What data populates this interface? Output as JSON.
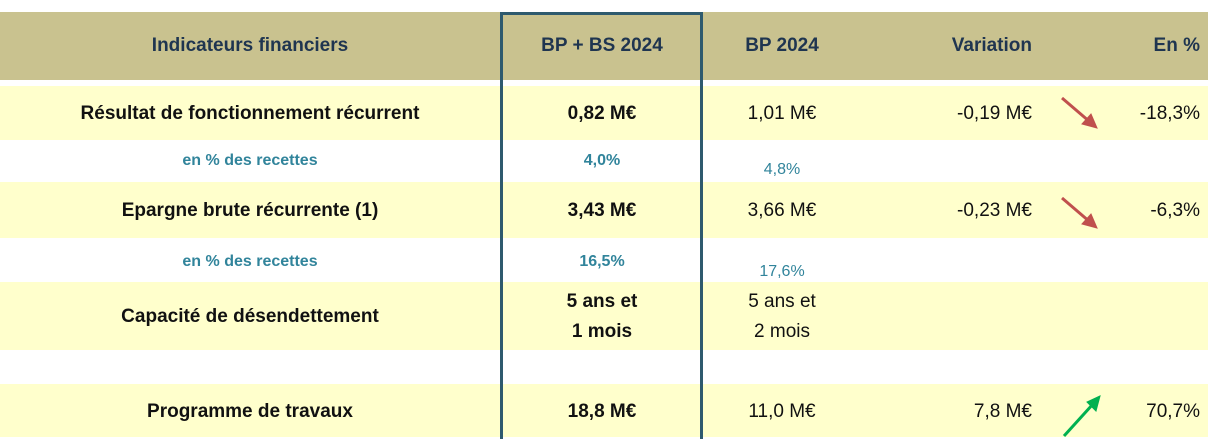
{
  "header": [
    "Indicateurs financiers",
    "BP + BS 2024",
    "BP 2024",
    "Variation",
    "En %"
  ],
  "rows": [
    {
      "label": "Résultat de fonctionnement récurrent",
      "bp_bs": [
        "0,82 M€"
      ],
      "bp": [
        "1,01 M€"
      ],
      "variation": "-0,19 M€",
      "pct": "-18,3%"
    },
    {
      "label": "en % des recettes",
      "bp_bs": [
        "4,0%"
      ],
      "bp": [
        "4,8%"
      ]
    },
    {
      "label": "Epargne brute récurrente (1)",
      "bp_bs": [
        "3,43 M€"
      ],
      "bp": [
        "3,66 M€"
      ],
      "variation": "-0,23 M€",
      "pct": "-6,3%"
    },
    {
      "label": "en % des recettes",
      "bp_bs": [
        "16,5%"
      ],
      "bp": [
        "17,6%"
      ]
    },
    {
      "label": "Capacité de désendettement",
      "bp_bs": [
        "5 ans et",
        "1 mois"
      ],
      "bp": [
        "5 ans et",
        "2 mois"
      ]
    },
    {
      "label": "Programme de travaux",
      "bp_bs": [
        "18,8 M€"
      ],
      "bp": [
        "11,0 M€"
      ],
      "variation": "7,8 M€",
      "pct": "70,7%"
    }
  ]
}
